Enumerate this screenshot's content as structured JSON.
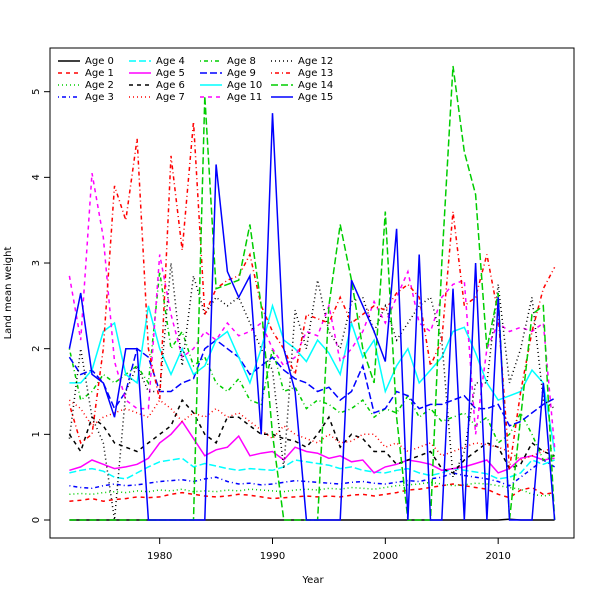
{
  "chart_data": {
    "type": "line",
    "xlabel": "Year",
    "ylabel": "Land mean weight",
    "xlim": [
      1970.28,
      2016.72
    ],
    "ylim": [
      -0.21,
      5.51
    ],
    "xticks": [
      1980,
      1990,
      2000,
      2010
    ],
    "yticks": [
      0,
      1,
      2,
      3,
      4,
      5
    ],
    "legend": "top-left",
    "x": [
      1972,
      1973,
      1974,
      1975,
      1976,
      1977,
      1978,
      1979,
      1980,
      1981,
      1982,
      1983,
      1984,
      1985,
      1986,
      1987,
      1988,
      1989,
      1990,
      1991,
      1992,
      1993,
      1994,
      1995,
      1996,
      1997,
      1998,
      1999,
      2000,
      2001,
      2002,
      2003,
      2004,
      2005,
      2006,
      2007,
      2008,
      2009,
      2010,
      2011,
      2012,
      2013,
      2014,
      2015
    ],
    "series": [
      {
        "name": "Age 0",
        "color": "#000000",
        "dash": "solid",
        "values": [
          0,
          0,
          0,
          0,
          0,
          0,
          0,
          0,
          0,
          0,
          0,
          0,
          0,
          0,
          0,
          0,
          0,
          0,
          0,
          0,
          0,
          0,
          0,
          0,
          0,
          0,
          0,
          0,
          0,
          0,
          0,
          0,
          0,
          0,
          0,
          0,
          0,
          0,
          0,
          0.01,
          0,
          0,
          0,
          0
        ]
      },
      {
        "name": "Age 1",
        "color": "#ff0000",
        "dash": "dashed",
        "values": [
          0.22,
          0.23,
          0.25,
          0.22,
          0.24,
          0.25,
          0.27,
          0.26,
          0.27,
          0.3,
          0.32,
          0.3,
          0.28,
          0.27,
          0.28,
          0.3,
          0.29,
          0.27,
          0.25,
          0.26,
          0.27,
          0.28,
          0.27,
          0.28,
          0.27,
          0.29,
          0.3,
          0.28,
          0.3,
          0.32,
          0.35,
          0.36,
          0.38,
          0.4,
          0.42,
          0.4,
          0.38,
          0.36,
          0.3,
          0.26,
          0.35,
          0.38,
          0.3,
          0.32
        ]
      },
      {
        "name": "Age 2",
        "color": "#00cd00",
        "dash": "dotted",
        "values": [
          0.3,
          0.31,
          0.3,
          0.32,
          0.33,
          0.32,
          0.34,
          0.33,
          0.35,
          0.34,
          0.36,
          0.33,
          0.34,
          0.33,
          0.35,
          0.34,
          0.36,
          0.35,
          0.34,
          0.33,
          0.35,
          0.36,
          0.35,
          0.37,
          0.36,
          0.38,
          0.37,
          0.36,
          0.38,
          0.4,
          0.41,
          0.42,
          0.44,
          0.42,
          0.4,
          0.41,
          0.43,
          0.42,
          0.4,
          0.38,
          0.36,
          0.3,
          0.28,
          0.3
        ]
      },
      {
        "name": "Age 3",
        "color": "#0000ff",
        "dash": "dotdash",
        "values": [
          0.4,
          0.38,
          0.37,
          0.4,
          0.42,
          0.4,
          0.41,
          0.43,
          0.45,
          0.46,
          0.47,
          0.45,
          0.48,
          0.5,
          0.45,
          0.42,
          0.43,
          0.41,
          0.42,
          0.44,
          0.46,
          0.45,
          0.44,
          0.43,
          0.42,
          0.44,
          0.45,
          0.43,
          0.42,
          0.44,
          0.46,
          0.45,
          0.48,
          0.5,
          0.55,
          0.52,
          0.5,
          0.48,
          0.45,
          0.4,
          0.5,
          0.6,
          0.7,
          0.62
        ]
      },
      {
        "name": "Age 4",
        "color": "#00ffff",
        "dash": "longdash",
        "values": [
          0.55,
          0.58,
          0.6,
          0.57,
          0.5,
          0.48,
          0.55,
          0.62,
          0.68,
          0.7,
          0.72,
          0.62,
          0.66,
          0.63,
          0.6,
          0.58,
          0.6,
          0.59,
          0.58,
          0.62,
          0.7,
          0.68,
          0.66,
          0.64,
          0.6,
          0.62,
          0.58,
          0.56,
          0.55,
          0.58,
          0.6,
          0.55,
          0.52,
          0.55,
          0.6,
          0.58,
          0.56,
          0.54,
          0.48,
          0.5,
          0.55,
          0.7,
          0.65,
          0.7
        ]
      },
      {
        "name": "Age 5",
        "color": "#ff00ff",
        "dash": "solid",
        "values": [
          0.58,
          0.62,
          0.7,
          0.65,
          0.6,
          0.62,
          0.65,
          0.72,
          0.9,
          1.0,
          1.15,
          0.95,
          0.75,
          0.82,
          0.85,
          0.98,
          0.75,
          0.78,
          0.8,
          0.7,
          0.85,
          0.8,
          0.78,
          0.72,
          0.75,
          0.68,
          0.7,
          0.55,
          0.62,
          0.65,
          0.7,
          0.68,
          0.65,
          0.58,
          0.6,
          0.62,
          0.66,
          0.7,
          0.55,
          0.6,
          0.72,
          0.75,
          0.7,
          0.72
        ]
      },
      {
        "name": "Age 6",
        "color": "#000000",
        "dash": "dashed",
        "values": [
          1.0,
          0.8,
          1.2,
          1.1,
          0.9,
          0.85,
          0.8,
          0.9,
          1.0,
          1.1,
          1.4,
          1.25,
          1.0,
          0.9,
          1.2,
          1.2,
          1.1,
          1.0,
          1.0,
          0.95,
          0.92,
          0.85,
          1.0,
          1.2,
          0.85,
          1.0,
          0.95,
          0.8,
          0.8,
          0.65,
          0.7,
          0.75,
          0.8,
          0.6,
          0.55,
          0.7,
          0.8,
          0.9,
          0.85,
          0.6,
          0.65,
          0.9,
          0.8,
          0.75
        ]
      },
      {
        "name": "Age 7",
        "color": "#ff0000",
        "dash": "dotted",
        "values": [
          1.4,
          1.3,
          1.1,
          1.2,
          1.25,
          1.3,
          1.25,
          1.2,
          1.4,
          1.3,
          1.15,
          1.25,
          1.2,
          1.3,
          1.2,
          1.25,
          1.15,
          1.05,
          0.95,
          1.1,
          1.0,
          0.95,
          0.9,
          1.0,
          0.9,
          0.92,
          1.0,
          1.0,
          0.85,
          0.9,
          0.8,
          0.85,
          0.9,
          0.75,
          0.8,
          0.85,
          0.9,
          0.88,
          0.85,
          0.8,
          0.7,
          0.75,
          0.8,
          0.85
        ]
      },
      {
        "name": "Age 8",
        "color": "#00cd00",
        "dash": "dotdash",
        "values": [
          2.0,
          1.4,
          1.5,
          1.7,
          1.6,
          1.7,
          1.8,
          1.6,
          2.9,
          2.0,
          2.2,
          1.8,
          1.9,
          1.6,
          1.5,
          1.65,
          1.4,
          1.35,
          2.0,
          1.5,
          1.55,
          1.3,
          1.4,
          1.35,
          1.25,
          1.3,
          1.4,
          1.2,
          1.3,
          1.25,
          1.45,
          1.2,
          1.3,
          1.15,
          1.2,
          1.25,
          1.1,
          1.2,
          0.9,
          1.0,
          1.25,
          1.0,
          0.7,
          0.75
        ]
      },
      {
        "name": "Age 9",
        "color": "#0000ff",
        "dash": "longdash",
        "values": [
          1.9,
          1.7,
          1.75,
          1.6,
          1.3,
          1.5,
          2.0,
          1.9,
          1.5,
          1.5,
          1.6,
          1.65,
          2.0,
          2.1,
          2.0,
          1.9,
          1.7,
          1.8,
          1.9,
          1.75,
          1.65,
          1.6,
          1.5,
          1.55,
          1.4,
          1.5,
          1.8,
          1.25,
          1.3,
          1.5,
          1.45,
          1.3,
          1.35,
          1.35,
          1.4,
          1.45,
          1.3,
          1.3,
          1.35,
          1.1,
          1.15,
          1.25,
          1.35,
          1.42
        ]
      },
      {
        "name": "Age 10",
        "color": "#00ffff",
        "dash": "solid",
        "values": [
          1.6,
          1.6,
          1.75,
          2.2,
          2.3,
          1.7,
          1.6,
          2.5,
          2.0,
          1.7,
          2.0,
          1.7,
          1.8,
          2.1,
          2.2,
          1.9,
          1.6,
          2.0,
          2.5,
          2.1,
          2.0,
          1.85,
          2.1,
          1.95,
          1.7,
          2.3,
          1.9,
          2.1,
          1.5,
          1.8,
          2.0,
          1.6,
          1.75,
          1.9,
          2.2,
          2.25,
          1.95,
          1.6,
          1.4,
          1.45,
          1.5,
          1.75,
          1.6,
          0.8
        ]
      },
      {
        "name": "Age 11",
        "color": "#ff00ff",
        "dash": "dashed",
        "values": [
          2.85,
          2.1,
          4.05,
          3.3,
          1.85,
          1.4,
          1.3,
          1.3,
          3.1,
          2.4,
          1.9,
          2.0,
          2.2,
          2.1,
          2.3,
          2.15,
          2.2,
          2.3,
          2.0,
          1.8,
          1.9,
          2.2,
          2.15,
          2.5,
          1.85,
          2.0,
          2.2,
          2.55,
          2.3,
          2.6,
          2.9,
          2.3,
          2.2,
          2.6,
          2.75,
          2.8,
          1.0,
          2.0,
          2.3,
          2.2,
          2.25,
          2.2,
          2.3,
          0.85
        ]
      },
      {
        "name": "Age 12",
        "color": "#000000",
        "dash": "dotted",
        "values": [
          0.95,
          2.0,
          1.2,
          0.9,
          0,
          1.5,
          1.8,
          1.5,
          1.5,
          3.0,
          1.8,
          2.85,
          2.4,
          2.6,
          2.5,
          2.6,
          2.3,
          2.0,
          1.75,
          0.6,
          2.45,
          2.0,
          2.8,
          2.2,
          2.0,
          2.55,
          2.6,
          2.2,
          2.5,
          2.1,
          2.3,
          2.5,
          2.6,
          2.1,
          0.5,
          0.8,
          1.6,
          1.6,
          2.75,
          1.6,
          2.0,
          2.6,
          1.4,
          1.3
        ]
      },
      {
        "name": "Age 13",
        "color": "#ff0000",
        "dash": "dotdash",
        "values": [
          1.35,
          0.9,
          1.0,
          2.0,
          3.9,
          3.5,
          4.45,
          2.0,
          1.4,
          4.25,
          3.15,
          4.65,
          2.4,
          2.7,
          2.8,
          2.85,
          3.1,
          2.5,
          2.2,
          2.0,
          1.7,
          2.4,
          2.35,
          2.3,
          2.6,
          2.3,
          2.4,
          2.5,
          2.45,
          2.65,
          2.75,
          2.6,
          1.8,
          2.1,
          3.6,
          2.5,
          2.6,
          3.1,
          2.4,
          0.6,
          1.5,
          2.2,
          2.7,
          2.95
        ]
      },
      {
        "name": "Age 14",
        "color": "#00cd00",
        "dash": "longdash",
        "values": [
          0,
          0,
          0,
          0,
          0,
          0,
          0,
          0,
          0,
          0,
          0,
          0,
          4.95,
          2.7,
          2.75,
          2.8,
          3.45,
          2.5,
          1.0,
          0,
          0,
          0,
          0,
          2.5,
          3.45,
          2.8,
          2.0,
          1.6,
          3.6,
          1.2,
          0,
          0,
          0,
          3.0,
          5.3,
          4.3,
          3.8,
          2.0,
          2.65,
          0,
          1.2,
          2.4,
          2.5,
          0
        ]
      },
      {
        "name": "Age 15",
        "color": "#0000ff",
        "dash": "solid",
        "values": [
          2.0,
          2.65,
          1.7,
          1.6,
          1.2,
          2.0,
          2.0,
          0,
          0,
          0,
          0,
          0,
          0,
          4.15,
          2.9,
          2.6,
          2.85,
          1.0,
          4.75,
          2.0,
          1.5,
          0,
          0,
          0,
          0,
          2.8,
          2.5,
          2.2,
          1.85,
          3.4,
          0,
          3.1,
          0,
          0,
          2.7,
          0,
          3.0,
          0,
          2.6,
          0,
          0,
          0,
          1.6,
          0
        ]
      }
    ]
  }
}
